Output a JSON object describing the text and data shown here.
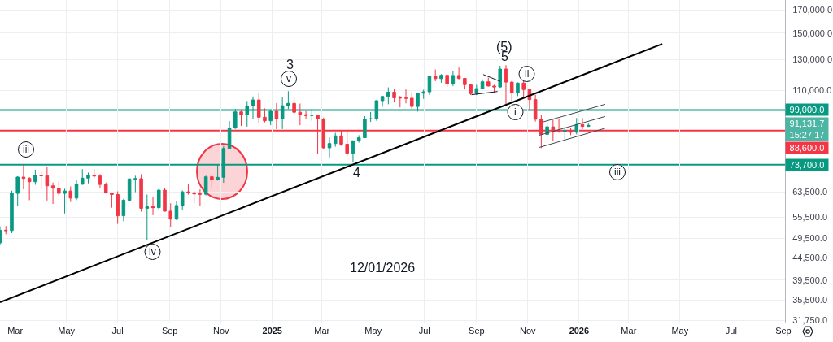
{
  "chart_data": {
    "type": "candlestick",
    "log": true,
    "grid": true,
    "xlim": [
      "2024-02-12",
      "2026-09-03"
    ],
    "ylim": [
      31400,
      179400
    ],
    "xticks": [
      {
        "value": "2024-03-01",
        "label": "Mar"
      },
      {
        "value": "2024-05-01",
        "label": "May"
      },
      {
        "value": "2024-07-01",
        "label": "Jul"
      },
      {
        "value": "2024-09-01",
        "label": "Sep"
      },
      {
        "value": "2024-11-01",
        "label": "Nov"
      },
      {
        "value": "2025-01-01",
        "label": "2025"
      },
      {
        "value": "2025-03-01",
        "label": "Mar"
      },
      {
        "value": "2025-05-01",
        "label": "May"
      },
      {
        "value": "2025-07-01",
        "label": "Jul"
      },
      {
        "value": "2025-09-01",
        "label": "Sep"
      },
      {
        "value": "2025-11-01",
        "label": "Nov"
      },
      {
        "value": "2026-01-01",
        "label": "2026"
      },
      {
        "value": "2026-03-01",
        "label": "Mar"
      },
      {
        "value": "2026-05-01",
        "label": "May"
      },
      {
        "value": "2026-07-01",
        "label": "Jul"
      },
      {
        "value": "2026-09-01",
        "label": "Sep"
      }
    ],
    "yticks": [
      {
        "value": 170000,
        "label": "170,000.0"
      },
      {
        "value": 150000,
        "label": "150,000.0"
      },
      {
        "value": 130000,
        "label": "130,000.0"
      },
      {
        "value": 110000,
        "label": "110,000.0"
      },
      {
        "value": 63500,
        "label": "63,500.0"
      },
      {
        "value": 55500,
        "label": "55,500.0"
      },
      {
        "value": 49500,
        "label": "49,500.0"
      },
      {
        "value": 44500,
        "label": "44,500.0"
      },
      {
        "value": 39500,
        "label": "39,500.0"
      },
      {
        "value": 35500,
        "label": "35,500.0"
      },
      {
        "value": 31750,
        "label": "31,750.0"
      }
    ],
    "x": [
      "2024-02-12",
      "2024-02-19",
      "2024-02-26",
      "2024-03-04",
      "2024-03-11",
      "2024-03-18",
      "2024-03-25",
      "2024-04-01",
      "2024-04-08",
      "2024-04-15",
      "2024-04-22",
      "2024-04-29",
      "2024-05-06",
      "2024-05-13",
      "2024-05-20",
      "2024-05-27",
      "2024-06-03",
      "2024-06-10",
      "2024-06-17",
      "2024-06-24",
      "2024-07-01",
      "2024-07-08",
      "2024-07-15",
      "2024-07-22",
      "2024-07-29",
      "2024-08-05",
      "2024-08-12",
      "2024-08-19",
      "2024-08-26",
      "2024-09-02",
      "2024-09-09",
      "2024-09-16",
      "2024-09-23",
      "2024-09-30",
      "2024-10-07",
      "2024-10-14",
      "2024-10-21",
      "2024-10-28",
      "2024-11-04",
      "2024-11-11",
      "2024-11-18",
      "2024-11-25",
      "2024-12-02",
      "2024-12-09",
      "2024-12-16",
      "2024-12-23",
      "2024-12-30",
      "2025-01-06",
      "2025-01-13",
      "2025-01-20",
      "2025-01-27",
      "2025-02-03",
      "2025-02-10",
      "2025-02-17",
      "2025-02-24",
      "2025-03-03",
      "2025-03-10",
      "2025-03-17",
      "2025-03-24",
      "2025-03-31",
      "2025-04-07",
      "2025-04-14",
      "2025-04-21",
      "2025-04-28",
      "2025-05-05",
      "2025-05-12",
      "2025-05-19",
      "2025-05-26",
      "2025-06-02",
      "2025-06-09",
      "2025-06-16",
      "2025-06-23",
      "2025-06-30",
      "2025-07-07",
      "2025-07-14",
      "2025-07-21",
      "2025-07-28",
      "2025-08-04",
      "2025-08-11",
      "2025-08-18",
      "2025-08-25",
      "2025-09-01",
      "2025-09-08",
      "2025-09-15",
      "2025-09-22",
      "2025-09-29",
      "2025-10-06",
      "2025-10-13",
      "2025-10-20",
      "2025-10-27",
      "2025-11-03",
      "2025-11-10",
      "2025-11-17",
      "2025-11-24",
      "2025-12-01",
      "2025-12-08",
      "2025-12-15",
      "2025-12-22",
      "2025-12-29",
      "2026-01-05",
      "2026-01-12"
    ],
    "ohlc": [
      [
        48300,
        52800,
        47700,
        51700
      ],
      [
        51700,
        52900,
        50600,
        51600
      ],
      [
        51600,
        64000,
        50900,
        63100
      ],
      [
        63100,
        69200,
        59000,
        68900
      ],
      [
        68900,
        73700,
        64500,
        68400
      ],
      [
        68400,
        68900,
        60800,
        67200
      ],
      [
        67200,
        71700,
        66100,
        69600
      ],
      [
        69600,
        71300,
        64500,
        69400
      ],
      [
        69400,
        72700,
        60700,
        65700
      ],
      [
        65700,
        66900,
        59600,
        64900
      ],
      [
        64900,
        67200,
        62400,
        63100
      ],
      [
        63100,
        64700,
        56600,
        63900
      ],
      [
        63900,
        65500,
        60200,
        61500
      ],
      [
        61500,
        67700,
        60800,
        66300
      ],
      [
        66300,
        71900,
        66100,
        68500
      ],
      [
        68500,
        70600,
        66600,
        69600
      ],
      [
        69600,
        71900,
        68500,
        69300
      ],
      [
        69300,
        70000,
        65100,
        66200
      ],
      [
        66200,
        66900,
        63100,
        63200
      ],
      [
        63200,
        63400,
        58400,
        62700
      ],
      [
        62700,
        63800,
        53500,
        55900
      ],
      [
        55900,
        61300,
        54300,
        60800
      ],
      [
        60800,
        68400,
        60600,
        68200
      ],
      [
        68200,
        69400,
        63500,
        68300
      ],
      [
        68300,
        70000,
        57200,
        58200
      ],
      [
        58200,
        62700,
        49100,
        58700
      ],
      [
        58700,
        61800,
        56100,
        58400
      ],
      [
        58400,
        65000,
        57800,
        64200
      ],
      [
        64200,
        64900,
        57200,
        57300
      ],
      [
        57300,
        59800,
        52600,
        54900
      ],
      [
        54900,
        60600,
        54600,
        59100
      ],
      [
        59100,
        64100,
        57600,
        63600
      ],
      [
        63600,
        66500,
        62700,
        63300
      ],
      [
        63300,
        64000,
        59800,
        62900
      ],
      [
        62900,
        64500,
        58900,
        62800
      ],
      [
        62800,
        69400,
        62400,
        69000
      ],
      [
        69000,
        69500,
        65100,
        68000
      ],
      [
        68000,
        73600,
        67600,
        68800
      ],
      [
        68800,
        81500,
        66800,
        80400
      ],
      [
        80400,
        93300,
        80200,
        89800
      ],
      [
        89800,
        99600,
        89400,
        98000
      ],
      [
        98000,
        98800,
        90800,
        96400
      ],
      [
        96400,
        103900,
        90500,
        101200
      ],
      [
        101200,
        106500,
        94200,
        104500
      ],
      [
        104500,
        108300,
        92200,
        95200
      ],
      [
        95200,
        99900,
        92600,
        93400
      ],
      [
        93400,
        98900,
        91200,
        98300
      ],
      [
        98300,
        102700,
        89300,
        94500
      ],
      [
        94500,
        106400,
        89300,
        101300
      ],
      [
        101300,
        109600,
        99500,
        102600
      ],
      [
        102600,
        106400,
        96200,
        97800
      ],
      [
        97800,
        102500,
        91200,
        96500
      ],
      [
        96500,
        98500,
        94100,
        96100
      ],
      [
        96100,
        99500,
        93400,
        96300
      ],
      [
        96300,
        96500,
        78200,
        94300
      ],
      [
        94300,
        95000,
        80000,
        80700
      ],
      [
        80700,
        85300,
        76600,
        82600
      ],
      [
        82600,
        87500,
        81200,
        86100
      ],
      [
        86100,
        88800,
        81600,
        82300
      ],
      [
        82300,
        88500,
        77200,
        78400
      ],
      [
        78400,
        84000,
        74500,
        83800
      ],
      [
        83800,
        86400,
        83000,
        85200
      ],
      [
        85200,
        95800,
        85100,
        94300
      ],
      [
        94300,
        97900,
        92800,
        94400
      ],
      [
        94400,
        104300,
        93400,
        104100
      ],
      [
        104100,
        106700,
        100800,
        106500
      ],
      [
        106500,
        111900,
        102100,
        109000
      ],
      [
        109000,
        110700,
        103100,
        105700
      ],
      [
        105700,
        106800,
        100400,
        105600
      ],
      [
        105600,
        110600,
        102600,
        105500
      ],
      [
        105500,
        108900,
        99600,
        100900
      ],
      [
        100900,
        108500,
        98200,
        108400
      ],
      [
        108400,
        110500,
        105100,
        109200
      ],
      [
        109200,
        119000,
        107400,
        118900
      ],
      [
        118900,
        123200,
        115700,
        117300
      ],
      [
        117300,
        120200,
        114700,
        119400
      ],
      [
        119400,
        119800,
        112000,
        114100
      ],
      [
        114100,
        122300,
        112700,
        119300
      ],
      [
        119300,
        124500,
        116800,
        117400
      ],
      [
        117400,
        117600,
        110600,
        113500
      ],
      [
        113500,
        113600,
        107300,
        108200
      ],
      [
        108200,
        113400,
        107300,
        111100
      ],
      [
        111100,
        116800,
        110600,
        115300
      ],
      [
        115300,
        117900,
        112400,
        112700
      ],
      [
        112700,
        113400,
        108600,
        112100
      ],
      [
        112100,
        125700,
        111600,
        123500
      ],
      [
        123500,
        126200,
        102000,
        115100
      ],
      [
        115100,
        116000,
        103500,
        108600
      ],
      [
        108600,
        114900,
        106700,
        114500
      ],
      [
        114500,
        116400,
        106300,
        110600
      ],
      [
        110600,
        110800,
        98900,
        104700
      ],
      [
        104700,
        107500,
        93000,
        94200
      ],
      [
        94200,
        96600,
        80600,
        86800
      ],
      [
        86800,
        93100,
        85300,
        90400
      ],
      [
        90400,
        94100,
        83800,
        88200
      ],
      [
        88200,
        94600,
        87600,
        88100
      ],
      [
        88100,
        90500,
        84500,
        88600
      ],
      [
        88600,
        90000,
        86400,
        87800
      ],
      [
        87800,
        94800,
        86800,
        91500
      ],
      [
        91500,
        94800,
        89300,
        90600
      ],
      [
        90600,
        92000,
        90400,
        91131.7
      ]
    ],
    "colors": [
      "#089981",
      "#f23645",
      "#089981",
      "#089981",
      "#f23645",
      "#f23645",
      "#089981",
      "#f23645",
      "#f23645",
      "#f23645",
      "#f23645",
      "#089981",
      "#f23645",
      "#089981",
      "#089981",
      "#089981",
      "#f23645",
      "#f23645",
      "#f23645",
      "#f23645",
      "#f23645",
      "#089981",
      "#089981",
      "#089981",
      "#f23645",
      "#089981",
      "#f23645",
      "#089981",
      "#f23645",
      "#f23645",
      "#089981",
      "#089981",
      "#f23645",
      "#f23645",
      "#f23645",
      "#089981",
      "#f23645",
      "#089981",
      "#089981",
      "#089981",
      "#089981",
      "#f23645",
      "#089981",
      "#089981",
      "#f23645",
      "#f23645",
      "#089981",
      "#f23645",
      "#089981",
      "#089981",
      "#f23645",
      "#f23645",
      "#f23645",
      "#089981",
      "#f23645",
      "#f23645",
      "#089981",
      "#089981",
      "#f23645",
      "#f23645",
      "#089981",
      "#089981",
      "#089981",
      "#089981",
      "#089981",
      "#089981",
      "#089981",
      "#f23645",
      "#f23645",
      "#f23645",
      "#f23645",
      "#089981",
      "#089981",
      "#089981",
      "#f23645",
      "#089981",
      "#f23645",
      "#089981",
      "#f23645",
      "#f23645",
      "#f23645",
      "#089981",
      "#089981",
      "#f23645",
      "#f23645",
      "#089981",
      "#f23645",
      "#f23645",
      "#089981",
      "#f23645",
      "#f23645",
      "#f23645",
      "#f23645",
      "#089981",
      "#f23645",
      "#f23645",
      "#089981",
      "#f23645",
      "#089981",
      "#f23645",
      "#089981"
    ],
    "series": [
      {
        "type": "line",
        "color": "#000000",
        "x": [
          "2024-02-12",
          "2026-04-10"
        ],
        "values": [
          35050,
          141500
        ]
      },
      {
        "type": "line",
        "color": "#131722",
        "x": [
          "2025-09-09",
          "2025-09-29"
        ],
        "values": [
          119900,
          115600
        ]
      },
      {
        "type": "line",
        "color": "#131722",
        "x": [
          "2025-08-26",
          "2025-09-26"
        ],
        "values": [
          107500,
          109400
        ]
      },
      {
        "type": "line",
        "color": "#434651",
        "x": [
          "2025-11-19",
          "2026-02-01"
        ],
        "values": [
          92800,
          102100
        ]
      },
      {
        "type": "line",
        "color": "#434651",
        "x": [
          "2025-11-14",
          "2026-02-01"
        ],
        "values": [
          86300,
          95600
        ]
      },
      {
        "type": "line",
        "color": "#434651",
        "x": [
          "2025-11-14",
          "2026-02-01"
        ],
        "values": [
          80800,
          89700
        ]
      }
    ],
    "ref_lines": [
      {
        "axis": "y",
        "value": 99000,
        "label": "99,000.0",
        "color": "#089981"
      },
      {
        "axis": "y",
        "value": 88600,
        "label": "88,600.0",
        "color": "#f23645"
      },
      {
        "axis": "y",
        "value": 73700,
        "label": "73,700.0",
        "color": "#089981"
      }
    ],
    "annotations": [
      {
        "text": "iii",
        "x": "2024-03-14",
        "y": 80000
      },
      {
        "text": "iv",
        "x": "2024-08-11",
        "y": 46000
      },
      "3",
      {
        "text": "v",
        "x": "2025-01-21",
        "y": 117200
      },
      "4",
      "(5)",
      "5",
      {
        "text": "ii",
        "x": "2025-10-31",
        "y": 120300
      },
      {
        "text": "i",
        "x": "2025-10-17",
        "y": 97900
      },
      {
        "text": "iii",
        "x": "2026-02-16",
        "y": 70700
      },
      "91,131.7\n15:27:17",
      "12/01/2026"
    ]
  }
}
